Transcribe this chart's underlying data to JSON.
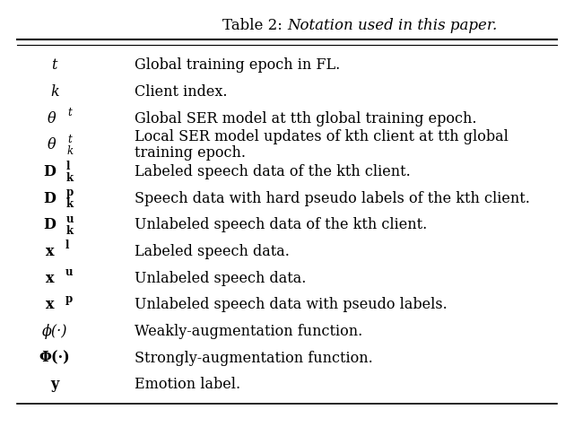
{
  "title_normal": "Table 2: ",
  "title_italic": "Notation used in this paper.",
  "background_color": "#ffffff",
  "rows": [
    {
      "symbol_type": "italic_only",
      "symbol_main": "t",
      "symbol_sup": "",
      "symbol_sub": "",
      "description": "Global training epoch in FL.",
      "desc_multiline": false
    },
    {
      "symbol_type": "italic_only",
      "symbol_main": "k",
      "symbol_sup": "",
      "symbol_sub": "",
      "description": "Client index.",
      "desc_multiline": false
    },
    {
      "symbol_type": "italic_sup",
      "symbol_main": "θ",
      "symbol_sup": "t",
      "symbol_sub": "",
      "description": "Global SER model at ⁠tth global training epoch.",
      "desc_multiline": false
    },
    {
      "symbol_type": "italic_subsup",
      "symbol_main": "θ",
      "symbol_sup": "t",
      "symbol_sub": "k",
      "description": "Local SER model updates of ⁠kth client at ⁠tth global",
      "description2": "training epoch.",
      "desc_multiline": true
    },
    {
      "symbol_type": "bold_subsup",
      "symbol_main": "D",
      "symbol_sup": "l",
      "symbol_sub": "k",
      "description": "Labeled speech data of the kth client.",
      "desc_multiline": false
    },
    {
      "symbol_type": "bold_subsup",
      "symbol_main": "D",
      "symbol_sup": "p",
      "symbol_sub": "k",
      "description": "Speech data with hard pseudo labels of the kth client.",
      "desc_multiline": false
    },
    {
      "symbol_type": "bold_subsup",
      "symbol_main": "D",
      "symbol_sup": "u",
      "symbol_sub": "k",
      "description": "Unlabeled speech data of the kth client.",
      "desc_multiline": false
    },
    {
      "symbol_type": "bold_sup",
      "symbol_main": "x",
      "symbol_sup": "l",
      "symbol_sub": "",
      "description": "Labeled speech data.",
      "desc_multiline": false
    },
    {
      "symbol_type": "bold_sup",
      "symbol_main": "x",
      "symbol_sup": "u",
      "symbol_sub": "",
      "description": "Unlabeled speech data.",
      "desc_multiline": false
    },
    {
      "symbol_type": "bold_sup",
      "symbol_main": "x",
      "symbol_sup": "p",
      "symbol_sub": "",
      "description": "Unlabeled speech data with pseudo labels.",
      "desc_multiline": false
    },
    {
      "symbol_type": "italic_only",
      "symbol_main": "ϕ(·)",
      "symbol_sup": "",
      "symbol_sub": "",
      "description": "Weakly-augmentation function.",
      "desc_multiline": false
    },
    {
      "symbol_type": "bold_only",
      "symbol_main": "Φ(·)",
      "symbol_sup": "",
      "symbol_sub": "",
      "description": "Strongly-augmentation function.",
      "desc_multiline": false
    },
    {
      "symbol_type": "bold_only",
      "symbol_main": "y",
      "symbol_sup": "",
      "symbol_sub": "",
      "description": "Emotion label.",
      "desc_multiline": false
    }
  ],
  "fontsize": 11.5,
  "title_fontsize": 12,
  "small_fontsize": 8.5
}
